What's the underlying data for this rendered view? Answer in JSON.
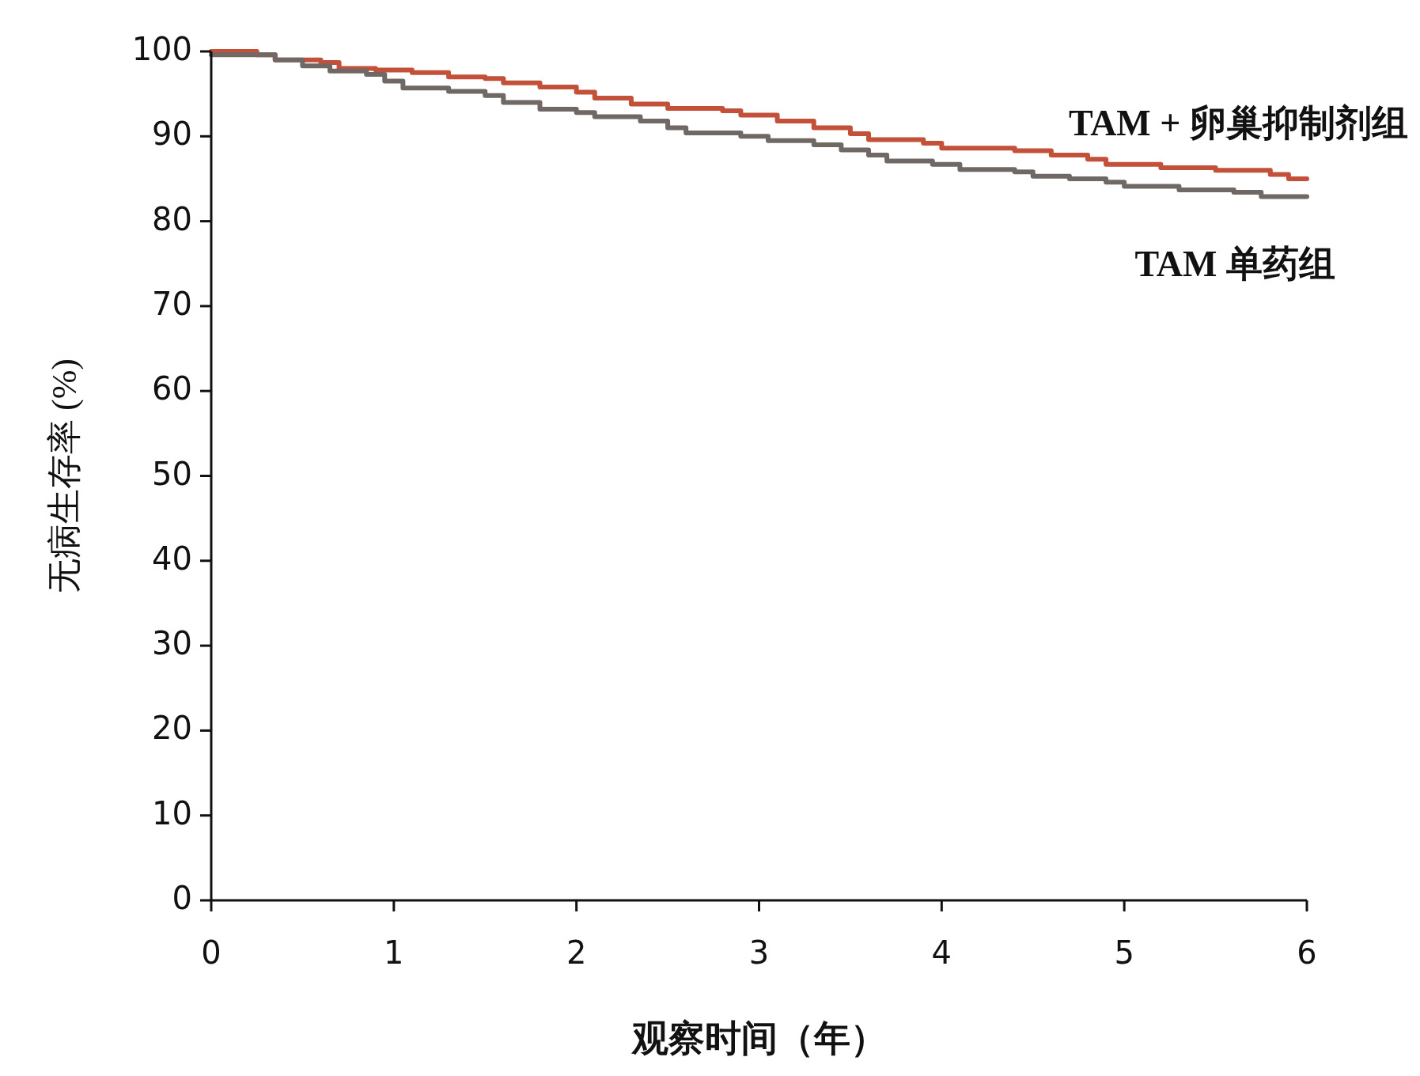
{
  "chart_data": {
    "type": "step",
    "xlabel": "观察时间（年）",
    "ylabel": "无病生存率 (%)",
    "xlim": [
      0,
      6
    ],
    "xticks": [
      0,
      1,
      2,
      3,
      4,
      5,
      6
    ],
    "ylim": [
      0,
      100
    ],
    "yticks": [
      0,
      10,
      20,
      30,
      40,
      50,
      60,
      70,
      80,
      90,
      100
    ],
    "grid": false,
    "series": [
      {
        "name": "TAM + 卵巢抑制剂组",
        "color": "#c3513a",
        "x": [
          0,
          0.25,
          0.35,
          0.6,
          0.7,
          0.9,
          1.1,
          1.3,
          1.5,
          1.6,
          1.8,
          2.0,
          2.1,
          2.3,
          2.5,
          2.8,
          2.9,
          3.1,
          3.3,
          3.5,
          3.6,
          3.9,
          4.0,
          4.4,
          4.6,
          4.8,
          4.9,
          5.2,
          5.5,
          5.8,
          5.9,
          6.0
        ],
        "values": [
          100,
          99.6,
          99,
          98.7,
          98,
          97.8,
          97.5,
          97,
          96.8,
          96.3,
          95.8,
          95.2,
          94.5,
          93.8,
          93.3,
          93,
          92.5,
          91.8,
          91,
          90.3,
          89.6,
          89.2,
          88.6,
          88.3,
          87.8,
          87.3,
          86.7,
          86.3,
          86,
          85.5,
          85,
          85
        ]
      },
      {
        "name": "TAM 单药组",
        "color": "#706865",
        "x": [
          0,
          0.25,
          0.35,
          0.5,
          0.65,
          0.85,
          0.95,
          1.05,
          1.3,
          1.5,
          1.6,
          1.8,
          2.0,
          2.1,
          2.35,
          2.5,
          2.6,
          2.9,
          3.05,
          3.3,
          3.45,
          3.6,
          3.7,
          3.95,
          4.1,
          4.4,
          4.5,
          4.7,
          4.9,
          5.0,
          5.3,
          5.6,
          5.75,
          6.0
        ],
        "values": [
          99.6,
          99.6,
          99,
          98.3,
          97.7,
          97.3,
          96.5,
          95.7,
          95.3,
          94.8,
          94,
          93.2,
          92.8,
          92.3,
          91.8,
          91,
          90.4,
          90,
          89.5,
          89,
          88.4,
          87.8,
          87.1,
          86.7,
          86.1,
          85.8,
          85.3,
          85,
          84.6,
          84.1,
          83.7,
          83.4,
          82.9,
          82.9
        ]
      }
    ]
  }
}
